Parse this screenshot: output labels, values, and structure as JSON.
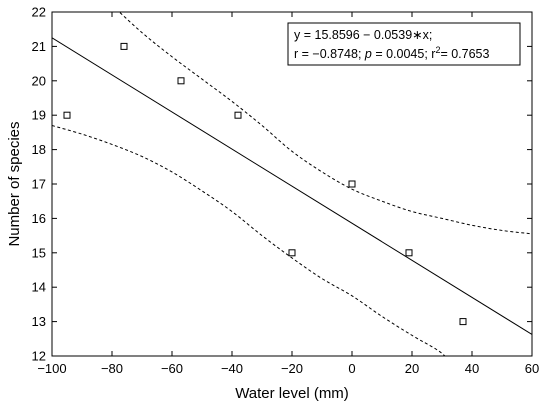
{
  "chart_data": {
    "type": "scatter",
    "xlabel": "Water level (mm)",
    "ylabel": "Number of species",
    "xlim": [
      -100,
      60
    ],
    "ylim": [
      12,
      22
    ],
    "x_ticks": [
      -100,
      -80,
      -60,
      -40,
      -20,
      0,
      20,
      40,
      60
    ],
    "x_tick_labels": [
      "−100",
      "−80",
      "−60",
      "−40",
      "−20",
      "0",
      "20",
      "40",
      "60"
    ],
    "y_ticks": [
      12,
      13,
      14,
      15,
      16,
      17,
      18,
      19,
      20,
      21,
      22
    ],
    "y_tick_labels": [
      "12",
      "13",
      "14",
      "15",
      "16",
      "17",
      "18",
      "19",
      "20",
      "21",
      "22"
    ],
    "grid": false,
    "points": [
      {
        "x": -95,
        "y": 19
      },
      {
        "x": -76,
        "y": 21
      },
      {
        "x": -57,
        "y": 20
      },
      {
        "x": -38,
        "y": 19
      },
      {
        "x": -20,
        "y": 15
      },
      {
        "x": 0,
        "y": 17
      },
      {
        "x": 19,
        "y": 15
      },
      {
        "x": 37,
        "y": 13
      }
    ],
    "regression": {
      "intercept": 15.8596,
      "slope": -0.0539,
      "confidence_upper": [
        {
          "x": -80,
          "y": 22.2
        },
        {
          "x": -70,
          "y": 21.4
        },
        {
          "x": -60,
          "y": 20.7
        },
        {
          "x": -50,
          "y": 20.05
        },
        {
          "x": -40,
          "y": 19.4
        },
        {
          "x": -30,
          "y": 18.7
        },
        {
          "x": -20,
          "y": 17.95
        },
        {
          "x": -10,
          "y": 17.35
        },
        {
          "x": 0,
          "y": 16.85
        },
        {
          "x": 10,
          "y": 16.5
        },
        {
          "x": 20,
          "y": 16.2
        },
        {
          "x": 30,
          "y": 16.0
        },
        {
          "x": 40,
          "y": 15.8
        },
        {
          "x": 50,
          "y": 15.65
        },
        {
          "x": 60,
          "y": 15.55
        }
      ],
      "confidence_lower": [
        {
          "x": -100,
          "y": 18.7
        },
        {
          "x": -90,
          "y": 18.45
        },
        {
          "x": -80,
          "y": 18.15
        },
        {
          "x": -70,
          "y": 17.8
        },
        {
          "x": -60,
          "y": 17.35
        },
        {
          "x": -50,
          "y": 16.8
        },
        {
          "x": -40,
          "y": 16.2
        },
        {
          "x": -30,
          "y": 15.5
        },
        {
          "x": -20,
          "y": 14.85
        },
        {
          "x": -10,
          "y": 14.25
        },
        {
          "x": 0,
          "y": 13.75
        },
        {
          "x": 10,
          "y": 13.15
        },
        {
          "x": 20,
          "y": 12.6
        },
        {
          "x": 28,
          "y": 12.2
        },
        {
          "x": 31,
          "y": 12.0
        }
      ]
    },
    "stats_box": {
      "line1": "y = 15.8596 − 0.0539∗x;",
      "line2_r": "r = −0.8748; ",
      "line2_p_symbol": "p",
      "line2_p_value": " = 0.0045; r",
      "line2_sup": "2",
      "line2_r2_value": "= 0.7653"
    },
    "colors": {
      "line": "#000000",
      "marker_fill": "#ffffff",
      "marker_stroke": "#000000",
      "background": "#ffffff"
    }
  }
}
